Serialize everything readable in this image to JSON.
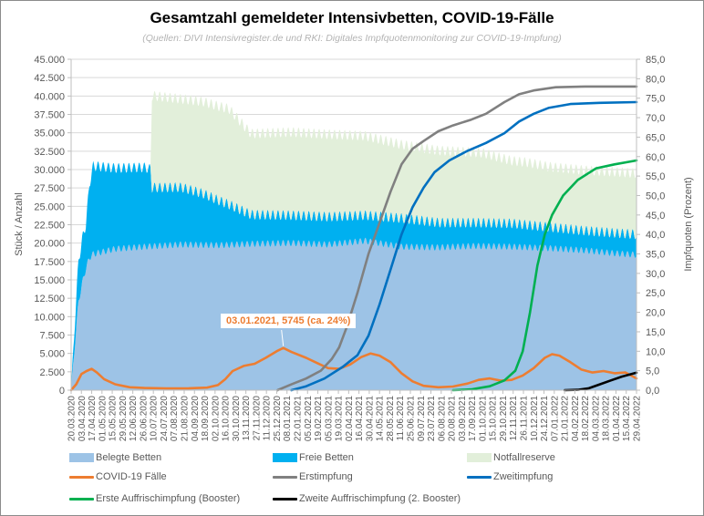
{
  "chart_data": {
    "type": "area",
    "title": "Gesamtzahl gemeldeter Intensivbetten, COVID-19-Fälle",
    "subtitle": "(Quellen: DIVI Intensivregister.de und RKI: Digitales Impfquotenmonitoring zur COVID-19-Impfung)",
    "ylabel": "Stück / Anzahl",
    "y2label": "Impfquoten (Prozent)",
    "ylim": [
      0,
      45000
    ],
    "y2lim": [
      0,
      85
    ],
    "grid": true,
    "legend_position": "bottom",
    "x_start": "20.03.2020",
    "x_end": "29.04.2022",
    "x_unit": "days since 20.03.2020",
    "y_ticks": [
      "0",
      "2.500",
      "5.000",
      "7.500",
      "10.000",
      "12.500",
      "15.000",
      "17.500",
      "20.000",
      "22.500",
      "25.000",
      "27.500",
      "30.000",
      "32.500",
      "35.000",
      "37.500",
      "40.000",
      "42.500",
      "45.000"
    ],
    "y2_ticks": [
      "0,0",
      "5,0",
      "10,0",
      "15,0",
      "20,0",
      "25,0",
      "30,0",
      "35,0",
      "40,0",
      "45,0",
      "50,0",
      "55,0",
      "60,0",
      "65,0",
      "70,0",
      "75,0",
      "80,0",
      "85,0"
    ],
    "x_ticks": [
      "20.03.2020",
      "03.04.2020",
      "17.04.2020",
      "01.05.2020",
      "15.05.2020",
      "29.05.2020",
      "12.06.2020",
      "26.06.2020",
      "10.07.2020",
      "24.07.2020",
      "07.08.2020",
      "21.08.2020",
      "04.09.2020",
      "18.09.2020",
      "02.10.2020",
      "16.10.2020",
      "30.10.2020",
      "13.11.2020",
      "27.11.2020",
      "11.12.2020",
      "25.12.2020",
      "08.01.2021",
      "22.01.2021",
      "05.02.2021",
      "19.02.2021",
      "05.03.2021",
      "19.03.2021",
      "02.04.2021",
      "16.04.2021",
      "30.04.2021",
      "14.05.2021",
      "28.05.2021",
      "11.06.2021",
      "25.06.2021",
      "09.07.2021",
      "23.07.2021",
      "06.08.2021",
      "20.08.2021",
      "03.09.2021",
      "17.09.2021",
      "01.10.2021",
      "15.10.2021",
      "29.10.2021",
      "12.11.2021",
      "26.11.2021",
      "10.12.2021",
      "24.12.2021",
      "07.01.2022",
      "21.01.2022",
      "04.02.2022",
      "18.02.2022",
      "04.03.2022",
      "18.03.2022",
      "01.04.2022",
      "15.04.2022",
      "29.04.2022"
    ],
    "series": [
      {
        "name": "Belegte Betten",
        "kind": "stacked-area",
        "axis": "left",
        "color": "#9dc3e6",
        "points": [
          [
            0,
            0
          ],
          [
            5,
            6000
          ],
          [
            10,
            12000
          ],
          [
            15,
            14500
          ],
          [
            20,
            16500
          ],
          [
            25,
            18000
          ],
          [
            30,
            18500
          ],
          [
            60,
            19200
          ],
          [
            100,
            19500
          ],
          [
            150,
            19800
          ],
          [
            200,
            19700
          ],
          [
            250,
            19900
          ],
          [
            300,
            20000
          ],
          [
            350,
            19800
          ],
          [
            400,
            20300
          ],
          [
            450,
            19500
          ],
          [
            500,
            19400
          ],
          [
            550,
            19600
          ],
          [
            600,
            19500
          ],
          [
            650,
            19300
          ],
          [
            700,
            19000
          ],
          [
            740,
            18600
          ],
          [
            770,
            18400
          ]
        ]
      },
      {
        "name": "Freie Betten",
        "kind": "stacked-area",
        "axis": "left",
        "color": "#00b0f0",
        "points": [
          [
            0,
            0
          ],
          [
            5,
            3000
          ],
          [
            10,
            5500
          ],
          [
            15,
            6000
          ],
          [
            20,
            6000
          ],
          [
            25,
            10000
          ],
          [
            30,
            12000
          ],
          [
            60,
            11000
          ],
          [
            100,
            10800
          ],
          [
            108,
            10500
          ],
          [
            110,
            8000
          ],
          [
            150,
            7800
          ],
          [
            180,
            7000
          ],
          [
            215,
            5500
          ],
          [
            245,
            4000
          ],
          [
            300,
            3800
          ],
          [
            350,
            3800
          ],
          [
            400,
            3500
          ],
          [
            450,
            3900
          ],
          [
            500,
            3400
          ],
          [
            550,
            3200
          ],
          [
            600,
            3200
          ],
          [
            650,
            2900
          ],
          [
            700,
            2700
          ],
          [
            740,
            2800
          ],
          [
            770,
            2800
          ]
        ]
      },
      {
        "name": "Notfallreserve",
        "kind": "stacked-area",
        "axis": "left",
        "color": "#e2efda",
        "points": [
          [
            0,
            0
          ],
          [
            108,
            0
          ],
          [
            110,
            12500
          ],
          [
            150,
            12000
          ],
          [
            180,
            12500
          ],
          [
            215,
            13000
          ],
          [
            245,
            11000
          ],
          [
            300,
            11300
          ],
          [
            350,
            11200
          ],
          [
            400,
            10800
          ],
          [
            450,
            10000
          ],
          [
            500,
            9800
          ],
          [
            540,
            9600
          ],
          [
            560,
            9500
          ],
          [
            600,
            8500
          ],
          [
            620,
            8500
          ],
          [
            650,
            8200
          ],
          [
            700,
            8200
          ],
          [
            740,
            8300
          ],
          [
            770,
            8300
          ]
        ]
      },
      {
        "name": "COVID-19 Fälle",
        "kind": "line",
        "axis": "left",
        "color": "#ed7d31",
        "points": [
          [
            0,
            0
          ],
          [
            7,
            800
          ],
          [
            14,
            2200
          ],
          [
            21,
            2600
          ],
          [
            28,
            2900
          ],
          [
            35,
            2400
          ],
          [
            45,
            1500
          ],
          [
            60,
            800
          ],
          [
            80,
            400
          ],
          [
            100,
            300
          ],
          [
            130,
            250
          ],
          [
            160,
            260
          ],
          [
            185,
            350
          ],
          [
            200,
            700
          ],
          [
            210,
            1500
          ],
          [
            220,
            2600
          ],
          [
            235,
            3300
          ],
          [
            250,
            3600
          ],
          [
            265,
            4400
          ],
          [
            280,
            5300
          ],
          [
            289,
            5745
          ],
          [
            300,
            5200
          ],
          [
            320,
            4400
          ],
          [
            335,
            3700
          ],
          [
            350,
            3000
          ],
          [
            365,
            2900
          ],
          [
            380,
            3500
          ],
          [
            395,
            4500
          ],
          [
            408,
            5000
          ],
          [
            420,
            4700
          ],
          [
            435,
            3800
          ],
          [
            450,
            2300
          ],
          [
            465,
            1200
          ],
          [
            480,
            600
          ],
          [
            500,
            400
          ],
          [
            520,
            500
          ],
          [
            540,
            900
          ],
          [
            555,
            1400
          ],
          [
            570,
            1600
          ],
          [
            585,
            1300
          ],
          [
            600,
            1400
          ],
          [
            615,
            2000
          ],
          [
            630,
            3000
          ],
          [
            645,
            4400
          ],
          [
            655,
            4900
          ],
          [
            665,
            4700
          ],
          [
            680,
            3800
          ],
          [
            695,
            2800
          ],
          [
            710,
            2400
          ],
          [
            725,
            2600
          ],
          [
            740,
            2300
          ],
          [
            755,
            2400
          ],
          [
            770,
            1600
          ]
        ]
      },
      {
        "name": "Erstimpfung",
        "kind": "line",
        "axis": "right",
        "color": "#808080",
        "points": [
          [
            281,
            0
          ],
          [
            300,
            1.5
          ],
          [
            320,
            3
          ],
          [
            340,
            5
          ],
          [
            355,
            8
          ],
          [
            365,
            11
          ],
          [
            375,
            16
          ],
          [
            390,
            25
          ],
          [
            405,
            35
          ],
          [
            420,
            43
          ],
          [
            435,
            51
          ],
          [
            450,
            58
          ],
          [
            465,
            62
          ],
          [
            480,
            64
          ],
          [
            500,
            66.5
          ],
          [
            520,
            68
          ],
          [
            545,
            69.5
          ],
          [
            565,
            71
          ],
          [
            590,
            74
          ],
          [
            610,
            76
          ],
          [
            630,
            77
          ],
          [
            660,
            77.8
          ],
          [
            700,
            78
          ],
          [
            770,
            78
          ]
        ]
      },
      {
        "name": "Zweitimpfung",
        "kind": "line",
        "axis": "right",
        "color": "#0070c0",
        "points": [
          [
            300,
            0
          ],
          [
            320,
            1
          ],
          [
            345,
            3
          ],
          [
            370,
            6
          ],
          [
            390,
            9
          ],
          [
            405,
            14
          ],
          [
            420,
            22
          ],
          [
            435,
            31
          ],
          [
            450,
            40
          ],
          [
            465,
            47
          ],
          [
            480,
            52
          ],
          [
            495,
            56
          ],
          [
            515,
            59
          ],
          [
            540,
            61.5
          ],
          [
            565,
            63.5
          ],
          [
            590,
            66
          ],
          [
            610,
            69
          ],
          [
            630,
            71
          ],
          [
            650,
            72.5
          ],
          [
            680,
            73.5
          ],
          [
            720,
            73.8
          ],
          [
            770,
            74
          ]
        ]
      },
      {
        "name": "Erste Auffrischimpfung (Booster)",
        "kind": "line",
        "axis": "right",
        "color": "#00b050",
        "points": [
          [
            520,
            0
          ],
          [
            545,
            0.2
          ],
          [
            570,
            1
          ],
          [
            590,
            2.5
          ],
          [
            605,
            5
          ],
          [
            615,
            10
          ],
          [
            625,
            20
          ],
          [
            635,
            32
          ],
          [
            645,
            40
          ],
          [
            655,
            45
          ],
          [
            670,
            50
          ],
          [
            690,
            54
          ],
          [
            715,
            57
          ],
          [
            740,
            58
          ],
          [
            770,
            59
          ]
        ]
      },
      {
        "name": "Zweite Auffrischimpfung (2. Booster)",
        "kind": "line",
        "axis": "right",
        "color": "#000000",
        "points": [
          [
            672,
            0
          ],
          [
            690,
            0.1
          ],
          [
            705,
            0.5
          ],
          [
            720,
            1.5
          ],
          [
            735,
            2.5
          ],
          [
            750,
            3.5
          ],
          [
            770,
            4.5
          ]
        ]
      }
    ],
    "annotations": [
      {
        "date": "03.01.2021",
        "x": 289,
        "value": 5745,
        "text": "03.01.2021, 5745 (ca. 24%)"
      }
    ]
  },
  "legend": [
    {
      "label": "Belegte Betten",
      "kind": "box",
      "color": "#9dc3e6"
    },
    {
      "label": "Freie Betten",
      "kind": "box",
      "color": "#00b0f0"
    },
    {
      "label": "Notfallreserve",
      "kind": "box",
      "color": "#e2efda"
    },
    {
      "label": "COVID-19 Fälle",
      "kind": "line",
      "color": "#ed7d31"
    },
    {
      "label": "Erstimpfung",
      "kind": "line",
      "color": "#808080"
    },
    {
      "label": "Zweitimpfung",
      "kind": "line",
      "color": "#0070c0"
    },
    {
      "label": "Erste Auffrischimpfung (Booster)",
      "kind": "line",
      "color": "#00b050"
    },
    {
      "label": "Zweite Auffrischimpfung (2. Booster)",
      "kind": "line",
      "color": "#000000"
    }
  ]
}
